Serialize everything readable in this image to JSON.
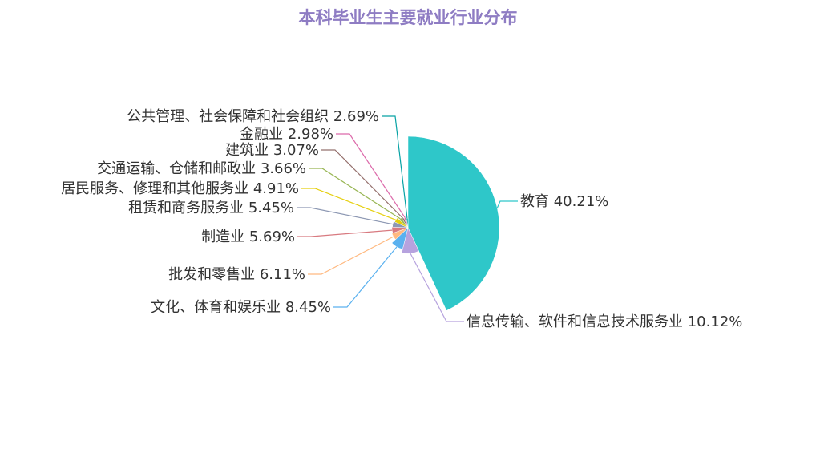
{
  "chart_data": {
    "type": "pie",
    "title": "本科毕业生主要就业行业分布",
    "title_color": "#8e7cc3",
    "rose": true,
    "slices": [
      {
        "label": "教育",
        "value": 40.21,
        "percent_text": "40.21%",
        "color": "#2ec7c9"
      },
      {
        "label": "信息传输、软件和信息技术服务业",
        "value": 10.12,
        "percent_text": "10.12%",
        "color": "#b6a2de"
      },
      {
        "label": "文化、体育和娱乐业",
        "value": 8.45,
        "percent_text": "8.45%",
        "color": "#5ab1ef"
      },
      {
        "label": "批发和零售业",
        "value": 6.11,
        "percent_text": "6.11%",
        "color": "#ffb980"
      },
      {
        "label": "制造业",
        "value": 5.69,
        "percent_text": "5.69%",
        "color": "#d87a80"
      },
      {
        "label": "租赁和商务服务业",
        "value": 5.45,
        "percent_text": "5.45%",
        "color": "#8d98b3"
      },
      {
        "label": "居民服务、修理和其他服务业",
        "value": 4.91,
        "percent_text": "4.91%",
        "color": "#e5cf0d"
      },
      {
        "label": "交通运输、仓储和邮政业",
        "value": 3.66,
        "percent_text": "3.66%",
        "color": "#97b552"
      },
      {
        "label": "建筑业",
        "value": 3.07,
        "percent_text": "3.07%",
        "color": "#95706d"
      },
      {
        "label": "金融业",
        "value": 2.98,
        "percent_text": "2.98%",
        "color": "#dc69aa"
      },
      {
        "label": "公共管理、社会保障和社会组织",
        "value": 2.69,
        "percent_text": "2.69%",
        "color": "#07a2a4"
      }
    ]
  }
}
